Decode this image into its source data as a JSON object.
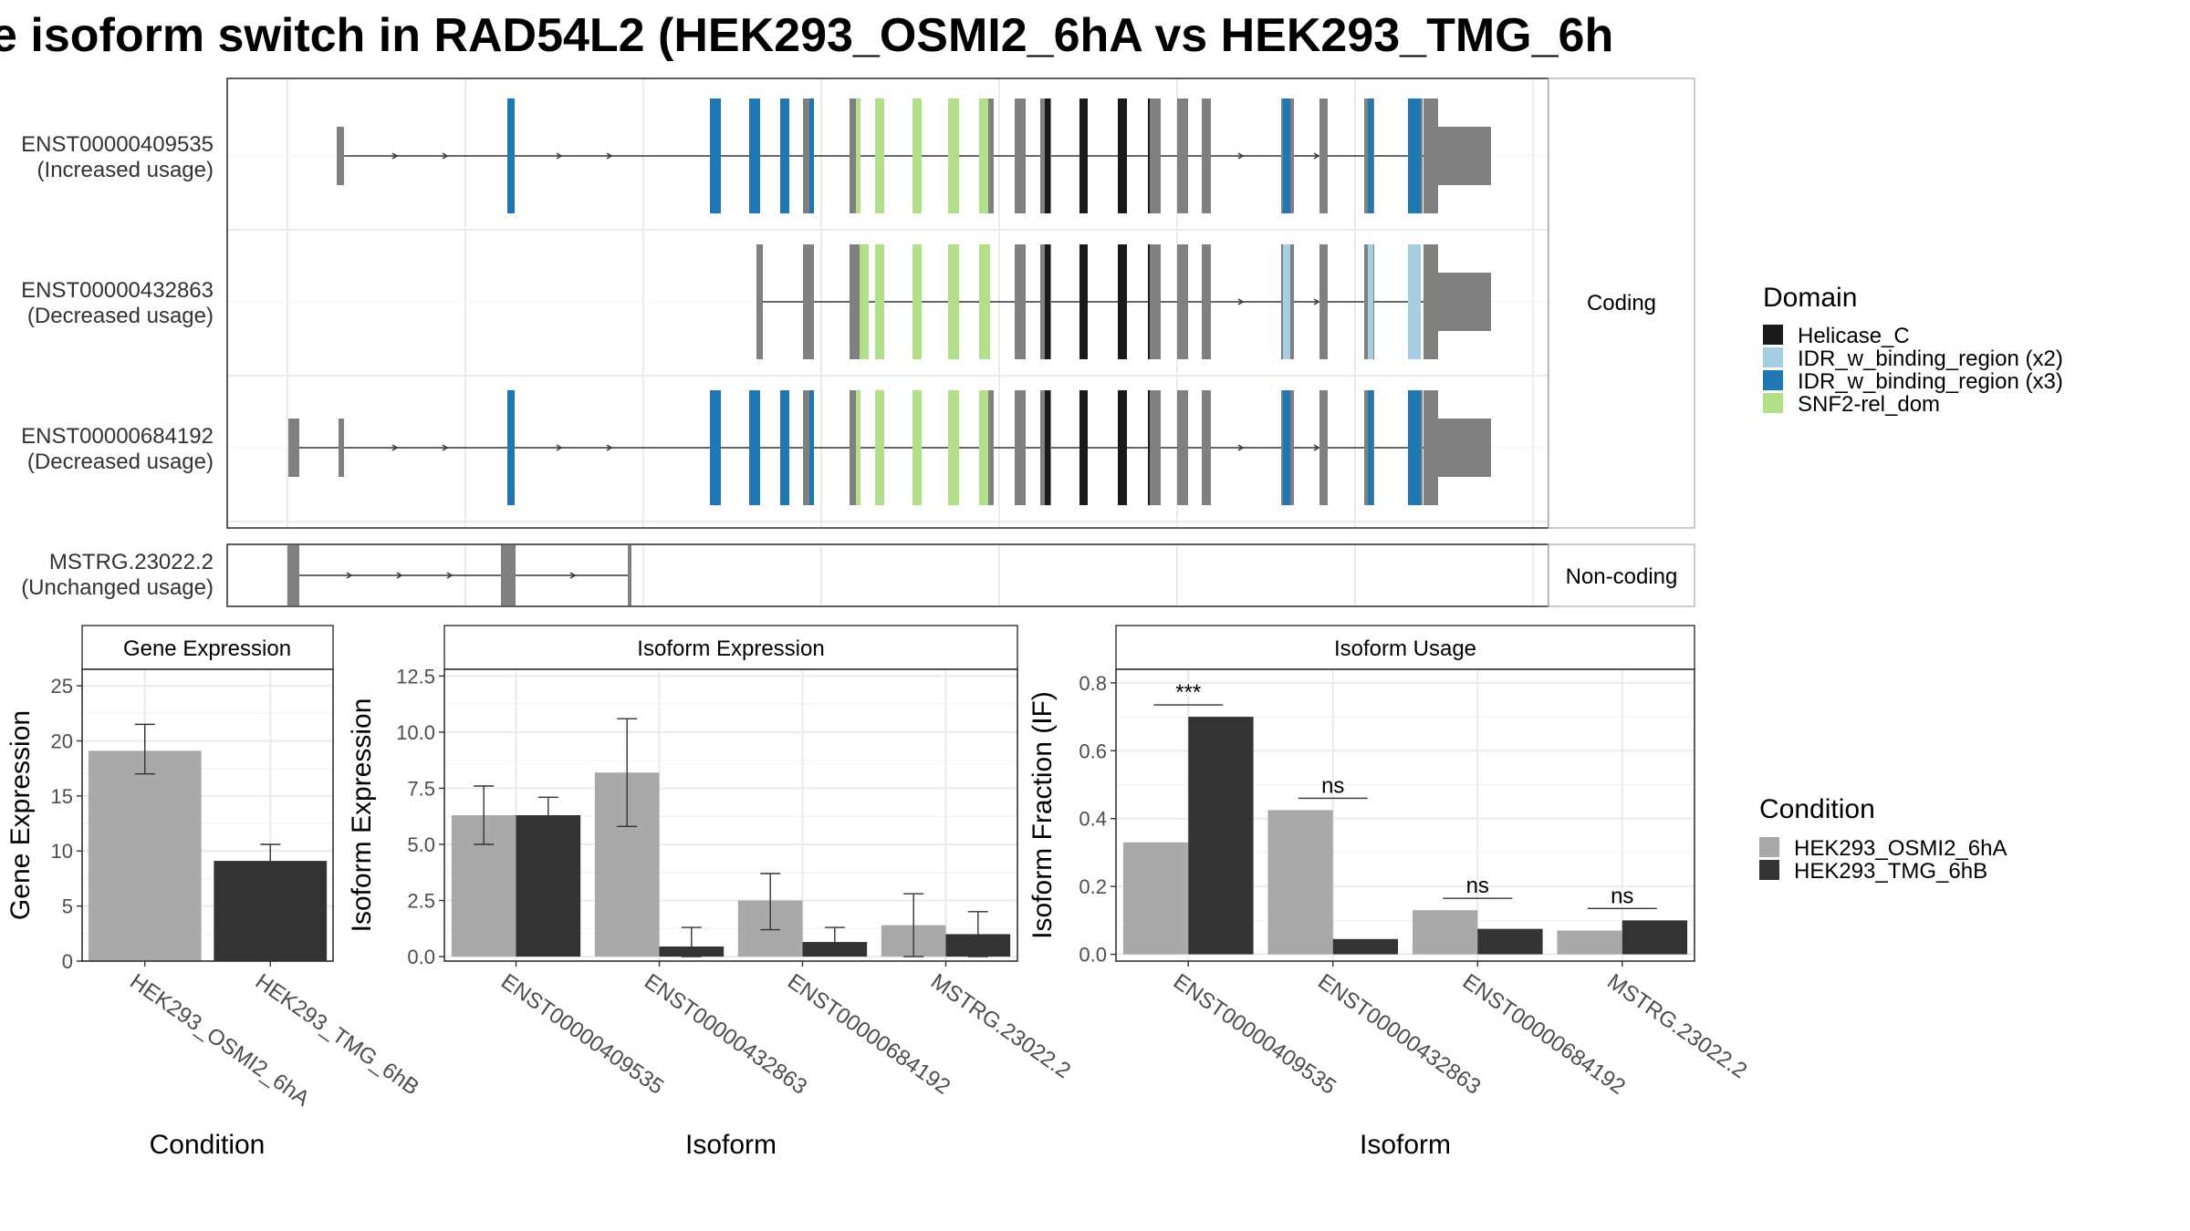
{
  "chart_data": [
    {
      "type": "transcript_structure",
      "title": "e isoform switch in RAD54L2 (HEK293_OSMI2_6hA vs HEK293_TMG_6h",
      "facets": [
        "Coding",
        "Non-coding"
      ],
      "transcripts": [
        {
          "id": "ENST00000409535",
          "usage": "(Increased usage)",
          "facet": "Coding"
        },
        {
          "id": "ENST00000432863",
          "usage": "(Decreased usage)",
          "facet": "Coding"
        },
        {
          "id": "ENST00000684192",
          "usage": "(Decreased usage)",
          "facet": "Coding"
        },
        {
          "id": "MSTRG.23022.2",
          "usage": "(Unchanged usage)",
          "facet": "Non-coding"
        }
      ],
      "legend": {
        "title": "Domain",
        "position": "right",
        "items": [
          {
            "label": "Helicase_C",
            "color": "#1a1a1a"
          },
          {
            "label": "IDR_w_binding_region (x2)",
            "color": "#a6cee3"
          },
          {
            "label": "IDR_w_binding_region (x3)",
            "color": "#1f78b4"
          },
          {
            "label": "SNF2-rel_dom",
            "color": "#b2df8a"
          }
        ],
        "noncoding_exon_color": "#808080"
      }
    },
    {
      "type": "bar",
      "title": "Gene Expression",
      "xlabel": "Condition",
      "ylabel": "Gene Expression",
      "categories": [
        "HEK293_OSMI2_6hA",
        "HEK293_TMG_6hB"
      ],
      "values": [
        19.1,
        9.1
      ],
      "errors": [
        [
          17.0,
          21.5
        ],
        [
          7.7,
          10.6
        ]
      ],
      "ylim": [
        0,
        26.5
      ],
      "yticks": [
        "0",
        "5",
        "10",
        "15",
        "20",
        "25"
      ],
      "grid": true
    },
    {
      "type": "bar",
      "title": "Isoform Expression",
      "xlabel": "Isoform",
      "ylabel": "Isoform Expression",
      "categories": [
        "ENST00000409535",
        "ENST00000432863",
        "ENST00000684192",
        "MSTRG.23022.2"
      ],
      "series": [
        {
          "values": [
            6.3,
            8.2,
            2.5,
            1.4
          ],
          "errors": [
            [
              5.0,
              7.6
            ],
            [
              5.8,
              10.6
            ],
            [
              1.2,
              3.7
            ],
            [
              0.0,
              2.8
            ]
          ]
        },
        {
          "values": [
            6.3,
            0.45,
            0.65,
            1.0
          ],
          "errors": [
            [
              5.5,
              7.1
            ],
            [
              0.0,
              1.3
            ],
            [
              0.1,
              1.3
            ],
            [
              0.0,
              2.0
            ]
          ]
        }
      ],
      "ylim": [
        -0.2,
        12.8
      ],
      "yticks": [
        "0.0",
        "2.5",
        "5.0",
        "7.5",
        "10.0",
        "12.5"
      ],
      "grid": true
    },
    {
      "type": "bar",
      "title": "Isoform Usage",
      "xlabel": "Isoform",
      "ylabel": "Isoform Fraction (IF)",
      "categories": [
        "ENST00000409535",
        "ENST00000432863",
        "ENST00000684192",
        "MSTRG.23022.2"
      ],
      "series": [
        {
          "values": [
            0.33,
            0.425,
            0.13,
            0.07
          ]
        },
        {
          "values": [
            0.7,
            0.045,
            0.075,
            0.1
          ]
        }
      ],
      "significance": [
        "***",
        "ns",
        "ns",
        "ns"
      ],
      "ylim": [
        -0.02,
        0.84
      ],
      "yticks": [
        "0.0",
        "0.2",
        "0.4",
        "0.6",
        "0.8"
      ],
      "grid": true
    },
    {
      "type": "legend",
      "title": "Condition",
      "position": "right",
      "items": [
        {
          "label": "HEK293_OSMI2_6hA",
          "color": "#a9a9a9"
        },
        {
          "label": "HEK293_TMG_6hB",
          "color": "#333333"
        }
      ]
    }
  ]
}
